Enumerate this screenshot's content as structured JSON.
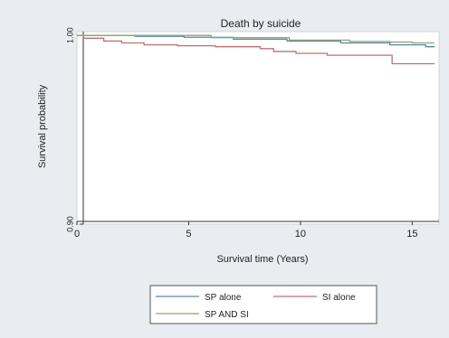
{
  "chart_data": {
    "type": "line",
    "step": true,
    "title": "Death by suicide",
    "xlabel": "Survival time (Years)",
    "ylabel": "Survival probability",
    "xlim": [
      0,
      16.2
    ],
    "ylim": [
      0.9,
      1.002
    ],
    "xticks": [
      0,
      5,
      10,
      15
    ],
    "yticks": [
      0.9,
      1.0
    ],
    "ytick_labels": [
      "0.90",
      "1.00"
    ],
    "grid": false,
    "legend_position": "bottom",
    "series": [
      {
        "name": "SP alone",
        "color": "#5a86a8",
        "points": [
          [
            0,
            1.0
          ],
          [
            2.6,
            0.9995
          ],
          [
            4.8,
            0.999
          ],
          [
            7.0,
            0.998
          ],
          [
            9.4,
            0.997
          ],
          [
            11.8,
            0.996
          ],
          [
            14.0,
            0.995
          ],
          [
            15.6,
            0.994
          ],
          [
            16.0,
            0.994
          ]
        ]
      },
      {
        "name": "SI alone",
        "color": "#c0706e",
        "points": [
          [
            0,
            1.0
          ],
          [
            0.3,
            0.9985
          ],
          [
            1.2,
            0.997
          ],
          [
            2.0,
            0.996
          ],
          [
            3.0,
            0.995
          ],
          [
            4.5,
            0.9945
          ],
          [
            6.2,
            0.994
          ],
          [
            8.2,
            0.993
          ],
          [
            8.8,
            0.9915
          ],
          [
            9.8,
            0.9905
          ],
          [
            11.2,
            0.9895
          ],
          [
            12.8,
            0.9895
          ],
          [
            14.0,
            0.9895
          ],
          [
            14.1,
            0.985
          ],
          [
            16.0,
            0.985
          ]
        ]
      },
      {
        "name": "SP AND SI",
        "color": "#8fa66e",
        "points": [
          [
            0,
            1.0
          ],
          [
            6.0,
            0.9988
          ],
          [
            9.5,
            0.9975
          ],
          [
            12.2,
            0.9968
          ],
          [
            14.0,
            0.9965
          ],
          [
            15.0,
            0.996
          ],
          [
            16.0,
            0.996
          ]
        ]
      }
    ]
  }
}
